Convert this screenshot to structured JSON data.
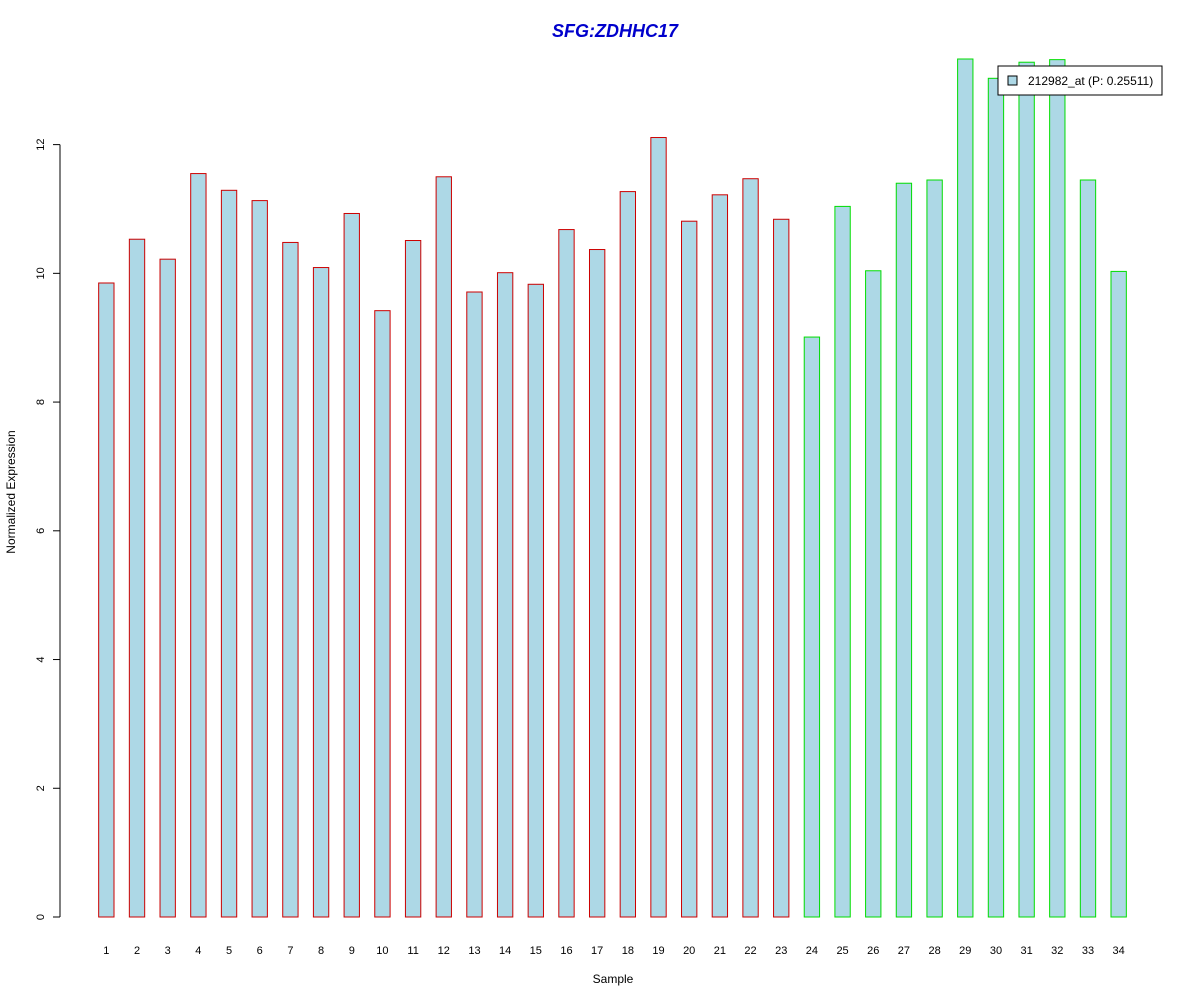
{
  "chart_data": {
    "type": "bar",
    "title": "SFG:ZDHHC17",
    "xlabel": "Sample",
    "ylabel": "Normalized Expression",
    "categories": [
      "1",
      "2",
      "3",
      "4",
      "5",
      "6",
      "7",
      "8",
      "9",
      "10",
      "11",
      "12",
      "13",
      "14",
      "15",
      "16",
      "17",
      "18",
      "19",
      "20",
      "21",
      "22",
      "23",
      "24",
      "25",
      "26",
      "27",
      "28",
      "29",
      "30",
      "31",
      "32",
      "33",
      "34"
    ],
    "series": [
      {
        "name": "212982_at (P: 0.25511)",
        "values": [
          9.85,
          10.53,
          10.22,
          11.55,
          11.29,
          11.13,
          10.48,
          10.09,
          10.93,
          9.42,
          10.51,
          11.5,
          9.71,
          10.01,
          9.83,
          10.68,
          10.37,
          11.27,
          12.11,
          10.81,
          11.22,
          11.47,
          10.84,
          9.01,
          11.04,
          10.04,
          11.4,
          11.45,
          13.33,
          13.03,
          13.28,
          13.32,
          11.45,
          10.03
        ]
      }
    ],
    "group_colors": [
      "#cc0000",
      "#cc0000",
      "#cc0000",
      "#cc0000",
      "#cc0000",
      "#cc0000",
      "#cc0000",
      "#cc0000",
      "#cc0000",
      "#cc0000",
      "#cc0000",
      "#cc0000",
      "#cc0000",
      "#cc0000",
      "#cc0000",
      "#cc0000",
      "#cc0000",
      "#cc0000",
      "#cc0000",
      "#cc0000",
      "#cc0000",
      "#cc0000",
      "#cc0000",
      "#00dd00",
      "#00dd00",
      "#00dd00",
      "#00dd00",
      "#00dd00",
      "#00dd00",
      "#00dd00",
      "#00dd00",
      "#00dd00",
      "#00dd00",
      "#00dd00"
    ],
    "bar_fill": "#add8e6",
    "yticks": [
      0,
      2,
      4,
      6,
      8,
      10,
      12
    ],
    "ylim": [
      0,
      13.33
    ],
    "legend_position": "top-right",
    "grid": false
  }
}
